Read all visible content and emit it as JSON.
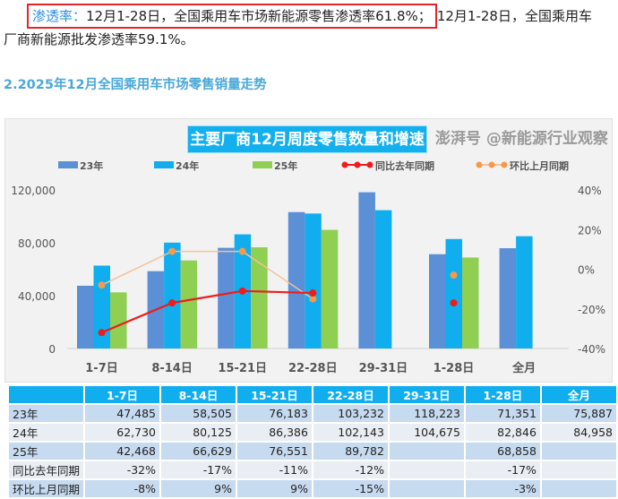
{
  "para1": {
    "label": "渗透率：",
    "highlight": "12月1-28日，全国乘用车市场新能源零售渗透率61.8%；",
    "rest": "12月1-28日，全国乘用车"
  },
  "para2": "厂商新能源批发渗透率59.1%。",
  "heading": "2.2025年12月全国乘用车市场零售销量走势",
  "watermark": "澎湃号 @新能源行业观察",
  "chart_data": {
    "type": "bar",
    "title": "主要厂商12月周度零售数量和增速",
    "categories": [
      "1-7日",
      "8-14日",
      "15-21日",
      "22-28日",
      "29-31日",
      "1-28日",
      "全月"
    ],
    "series": [
      {
        "name": "23年",
        "color": "#5b8fd6",
        "values": [
          47485,
          58505,
          76183,
          103232,
          118223,
          71351,
          75887
        ]
      },
      {
        "name": "24年",
        "color": "#10aeef",
        "values": [
          62730,
          80125,
          86386,
          102143,
          104675,
          82846,
          84958
        ]
      },
      {
        "name": "25年",
        "color": "#8fcf52",
        "values": [
          42468,
          66629,
          76551,
          89782,
          null,
          68858,
          null
        ]
      }
    ],
    "lines": [
      {
        "name": "同比去年同期",
        "color": "#ee1c1c",
        "values": [
          -32,
          -17,
          -11,
          -12,
          null,
          -17,
          null
        ],
        "labels": [
          "-32%",
          "-17%",
          "-11%",
          "-12%",
          "",
          "-17%",
          ""
        ]
      },
      {
        "name": "环比上月同期",
        "color": "#f5c29a",
        "marker": "#f59a4a",
        "values": [
          -8,
          9,
          9,
          -15,
          null,
          -3,
          null
        ],
        "labels": [
          "-8%",
          "9%",
          "9%",
          "-15%",
          "",
          "-3%",
          ""
        ]
      }
    ],
    "ylim": [
      0,
      120000
    ],
    "yticks": [
      "120,000",
      "80,000",
      "40,000",
      "0"
    ],
    "y2lim": [
      -40,
      40
    ],
    "y2ticks": [
      "40%",
      "20%",
      "0%",
      "-20%",
      "-40%"
    ],
    "legend": "top"
  },
  "table": {
    "rows": [
      {
        "label": "23年",
        "cells": [
          "47,485",
          "58,505",
          "76,183",
          "103,232",
          "118,223",
          "71,351",
          "75,887"
        ]
      },
      {
        "label": "24年",
        "cells": [
          "62,730",
          "80,125",
          "86,386",
          "102,143",
          "104,675",
          "82,846",
          "84,958"
        ]
      },
      {
        "label": "25年",
        "cells": [
          "42,468",
          "66,629",
          "76,551",
          "89,782",
          "",
          "68,858",
          ""
        ]
      },
      {
        "label": "同比去年同期",
        "cells": [
          "-32%",
          "-17%",
          "-11%",
          "-12%",
          "",
          "-17%",
          ""
        ]
      },
      {
        "label": "环比上月同期",
        "cells": [
          "-8%",
          "9%",
          "9%",
          "-15%",
          "",
          "-3%",
          ""
        ]
      }
    ]
  }
}
